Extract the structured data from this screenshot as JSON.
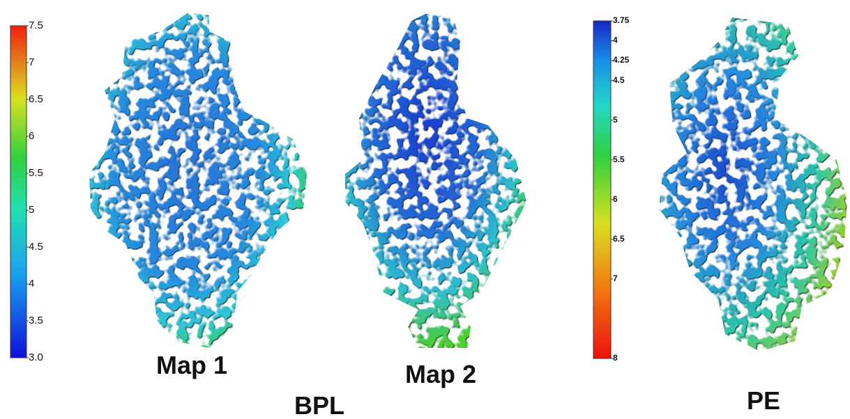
{
  "colorbars": [
    {
      "lim": [
        3,
        7.5
      ],
      "ticks": [
        {
          "value": 3,
          "label": "3.0"
        },
        3.5,
        4,
        4.5,
        5,
        5.5,
        6,
        6.5,
        7,
        7.5
      ]
    },
    {
      "lim": [
        3.75,
        8
      ],
      "ticks": [
        3.75,
        4,
        4.25,
        4.5,
        5,
        5.5,
        6,
        6.5,
        7,
        8
      ]
    }
  ],
  "maps": [
    {
      "label": "Map 1"
    },
    {
      "label": "Map 2"
    }
  ],
  "groups": [
    {
      "label": "BPL"
    },
    {
      "label": "PE"
    }
  ]
}
